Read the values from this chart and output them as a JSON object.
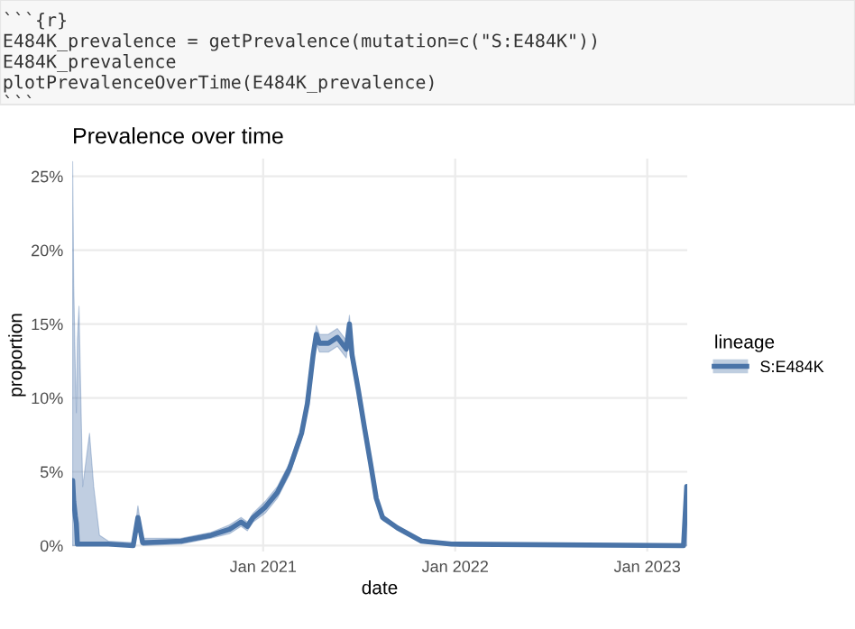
{
  "chart_data": {
    "type": "line",
    "title": "Prevalence over time",
    "xlabel": "date",
    "ylabel": "proportion",
    "legend_title": "lineage",
    "annotations": [
      "```{r}",
      "E484K_prevalence = getPrevalence(mutation=c(\"S:E484K\"))",
      "E484K_prevalence",
      "plotPrevalenceOverTime(E484K_prevalence)",
      "```"
    ],
    "x": [
      "2020-01-05",
      "2020-01-07",
      "2020-01-10",
      "2020-01-12",
      "2020-01-14",
      "2020-01-17",
      "2020-01-24",
      "2020-02-06",
      "2020-02-14",
      "2020-02-25",
      "2020-03-13",
      "2020-04-29",
      "2020-05-08",
      "2020-05-17",
      "2020-07-29",
      "2020-09-24",
      "2020-10-29",
      "2020-11-20",
      "2020-12-02",
      "2020-12-13",
      "2021-01-05",
      "2021-01-28",
      "2021-02-20",
      "2021-03-15",
      "2021-03-26",
      "2021-04-06",
      "2021-04-12",
      "2021-04-18",
      "2021-05-05",
      "2021-05-22",
      "2021-06-08",
      "2021-06-14",
      "2021-06-19",
      "2021-07-01",
      "2021-07-12",
      "2021-07-24",
      "2021-08-04",
      "2021-08-16",
      "2021-09-13",
      "2021-10-29",
      "2021-12-25",
      "2023-03-11",
      "2023-03-17"
    ],
    "series": [
      {
        "name": "S:E484K",
        "color": "#4a74a8",
        "values": [
          0.044,
          0.03,
          0.02,
          0.015,
          0.001,
          0.001,
          0.001,
          0.001,
          0.001,
          0.001,
          0.001,
          0.0,
          0.019,
          0.002,
          0.003,
          0.007,
          0.011,
          0.016,
          0.013,
          0.019,
          0.026,
          0.036,
          0.052,
          0.076,
          0.096,
          0.129,
          0.143,
          0.137,
          0.137,
          0.141,
          0.133,
          0.15,
          0.129,
          0.105,
          0.081,
          0.056,
          0.032,
          0.019,
          0.012,
          0.003,
          0.001,
          0.0,
          0.04
        ],
        "lower": [
          0.0,
          0.0,
          0.0,
          0.0,
          0.0,
          0.0,
          0.0,
          0.0,
          0.0,
          0.0,
          0.0,
          0.0,
          0.012,
          0.0,
          0.001,
          0.005,
          0.008,
          0.013,
          0.01,
          0.016,
          0.022,
          0.032,
          0.048,
          0.072,
          0.091,
          0.124,
          0.137,
          0.131,
          0.131,
          0.135,
          0.127,
          0.144,
          0.124,
          0.101,
          0.077,
          0.053,
          0.03,
          0.017,
          0.011,
          0.002,
          0.0,
          0.0,
          0.0
        ],
        "upper": [
          0.26,
          0.177,
          0.12,
          0.09,
          0.14,
          0.162,
          0.04,
          0.076,
          0.04,
          0.007,
          0.003,
          0.002,
          0.027,
          0.005,
          0.005,
          0.009,
          0.014,
          0.019,
          0.016,
          0.022,
          0.03,
          0.04,
          0.056,
          0.08,
          0.101,
          0.134,
          0.149,
          0.143,
          0.143,
          0.147,
          0.139,
          0.156,
          0.134,
          0.109,
          0.085,
          0.059,
          0.034,
          0.021,
          0.013,
          0.004,
          0.002,
          0.001,
          0.04
        ]
      }
    ],
    "xlim": [
      "2020-01-04",
      "2023-03-18"
    ],
    "xticks": [
      {
        "value": "2021-01-01",
        "label": "Jan 2021"
      },
      {
        "value": "2022-01-01",
        "label": "Jan 2022"
      },
      {
        "value": "2023-01-01",
        "label": "Jan 2023"
      }
    ],
    "ylim": [
      -0.004,
      0.262
    ],
    "yticks": [
      {
        "value": 0,
        "label": "0%"
      },
      {
        "value": 0.05,
        "label": "5%"
      },
      {
        "value": 0.1,
        "label": "10%"
      },
      {
        "value": 0.15,
        "label": "15%"
      },
      {
        "value": 0.2,
        "label": "20%"
      },
      {
        "value": 0.25,
        "label": "25%"
      }
    ],
    "grid": true,
    "legend": "right"
  }
}
